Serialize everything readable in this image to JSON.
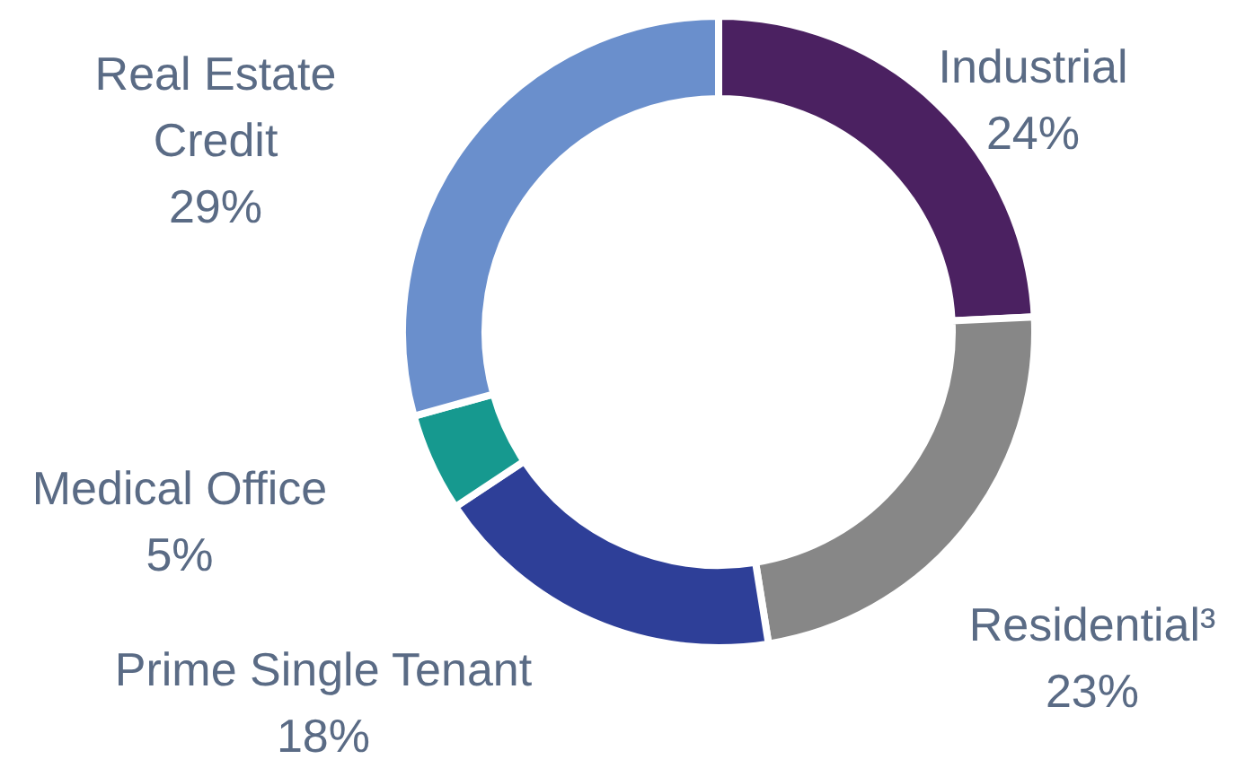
{
  "chart_data": {
    "type": "donut",
    "categories": [
      "Industrial",
      "Residential³",
      "Prime Single Tenant",
      "Medical Office",
      "Real Estate Credit"
    ],
    "values": [
      24,
      23,
      18,
      5,
      29
    ],
    "colors": [
      "#4b2161",
      "#878787",
      "#2e3f98",
      "#16998f",
      "#6a8fcc"
    ],
    "value_labels": [
      "24%",
      "23%",
      "18%",
      "5%",
      "29%"
    ],
    "legend": false
  }
}
